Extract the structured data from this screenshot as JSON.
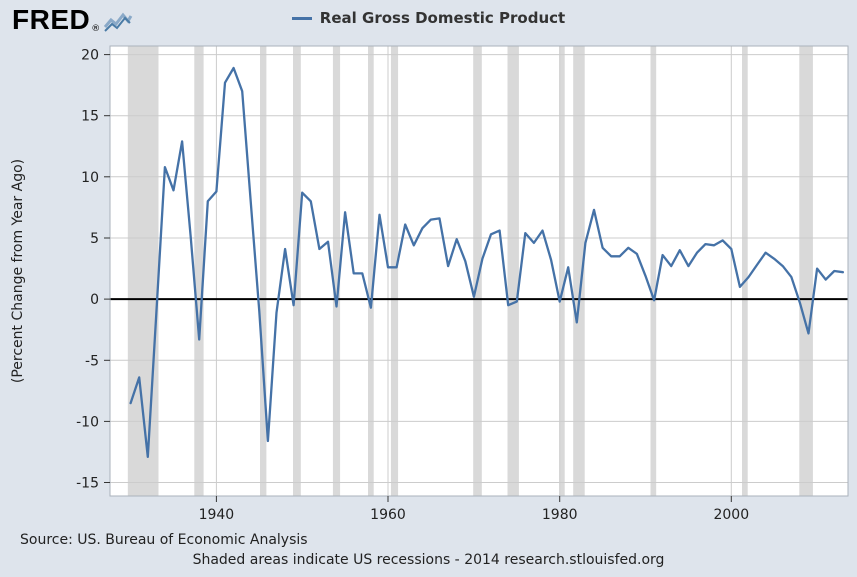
{
  "page": {
    "background": "#dee4ec"
  },
  "header": {
    "logo_text": "FRED",
    "logo_reg": "®",
    "legend": {
      "label": "Real Gross Domestic Product"
    }
  },
  "chart_data": {
    "type": "line",
    "title": "Real Gross Domestic Product",
    "ylabel": "(Percent Change from Year Ago)",
    "xlabel": "",
    "legend_position": "top-center",
    "grid": true,
    "xlim": [
      1927.6,
      2013.6
    ],
    "ylim": [
      -16.1,
      20.7
    ],
    "x_ticks": [
      1940,
      1960,
      1980,
      2000
    ],
    "y_ticks": [
      -15,
      -10,
      -5,
      0,
      5,
      10,
      15,
      20
    ],
    "line_color": "#4572a7",
    "recession_color": "#d9d9d9",
    "plot_background": "#ffffff",
    "grid_color": "#cccccc",
    "zero_line_color": "#000000",
    "recessions": [
      [
        1929.67,
        1933.25
      ],
      [
        1937.42,
        1938.5
      ],
      [
        1945.08,
        1945.83
      ],
      [
        1948.92,
        1949.83
      ],
      [
        1953.58,
        1954.42
      ],
      [
        1957.67,
        1958.33
      ],
      [
        1960.33,
        1961.17
      ],
      [
        1969.92,
        1970.92
      ],
      [
        1973.92,
        1975.25
      ],
      [
        1980.0,
        1980.58
      ],
      [
        1981.58,
        1982.92
      ],
      [
        1990.58,
        1991.25
      ],
      [
        2001.25,
        2001.92
      ],
      [
        2007.92,
        2009.5
      ]
    ],
    "series": [
      {
        "name": "Real Gross Domestic Product",
        "x": [
          1930,
          1931,
          1932,
          1933,
          1934,
          1935,
          1936,
          1937,
          1938,
          1939,
          1940,
          1941,
          1942,
          1943,
          1944,
          1945,
          1946,
          1947,
          1948,
          1949,
          1950,
          1951,
          1952,
          1953,
          1954,
          1955,
          1956,
          1957,
          1958,
          1959,
          1960,
          1961,
          1962,
          1963,
          1964,
          1965,
          1966,
          1967,
          1968,
          1969,
          1970,
          1971,
          1972,
          1973,
          1974,
          1975,
          1976,
          1977,
          1978,
          1979,
          1980,
          1981,
          1982,
          1983,
          1984,
          1985,
          1986,
          1987,
          1988,
          1989,
          1990,
          1991,
          1992,
          1993,
          1994,
          1995,
          1996,
          1997,
          1998,
          1999,
          2000,
          2001,
          2002,
          2003,
          2004,
          2005,
          2006,
          2007,
          2008,
          2009,
          2010,
          2011,
          2012,
          2013
        ],
        "values": [
          -8.5,
          -6.4,
          -12.9,
          -1.2,
          10.8,
          8.9,
          12.9,
          5.1,
          -3.3,
          8.0,
          8.8,
          17.7,
          18.9,
          17.0,
          8.0,
          -1.0,
          -11.6,
          -1.1,
          4.1,
          -0.5,
          8.7,
          8.0,
          4.1,
          4.7,
          -0.6,
          7.1,
          2.1,
          2.1,
          -0.7,
          6.9,
          2.6,
          2.6,
          6.1,
          4.4,
          5.8,
          6.5,
          6.6,
          2.7,
          4.9,
          3.1,
          0.2,
          3.3,
          5.3,
          5.6,
          -0.5,
          -0.2,
          5.4,
          4.6,
          5.6,
          3.2,
          -0.2,
          2.6,
          -1.9,
          4.6,
          7.3,
          4.2,
          3.5,
          3.5,
          4.2,
          3.7,
          1.9,
          -0.1,
          3.6,
          2.7,
          4.0,
          2.7,
          3.8,
          4.5,
          4.4,
          4.8,
          4.1,
          1.0,
          1.8,
          2.8,
          3.8,
          3.3,
          2.7,
          1.8,
          -0.3,
          -2.8,
          2.5,
          1.6,
          2.3,
          2.2
        ]
      }
    ]
  },
  "footer": {
    "source": "Source: US. Bureau of Economic Analysis",
    "note": "Shaded areas indicate US recessions - 2014 research.stlouisfed.org"
  }
}
